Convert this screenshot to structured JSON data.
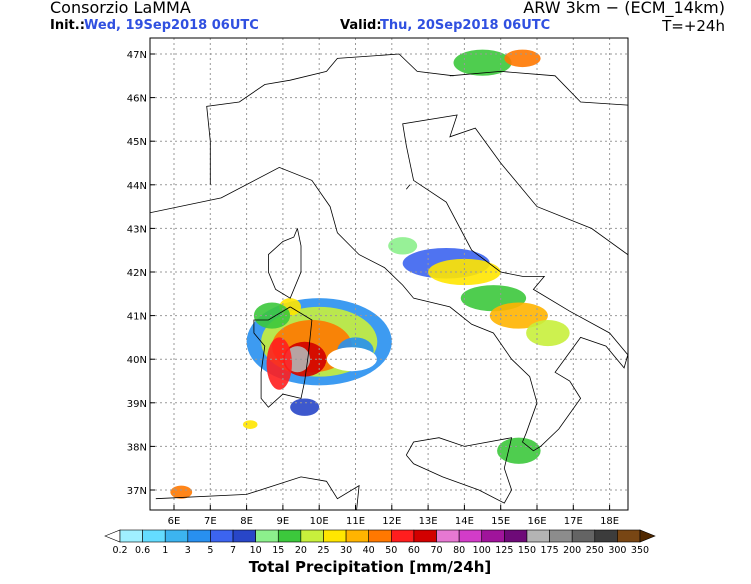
{
  "header": {
    "left_title": "Consorzio LaMMA",
    "init_label": "Init.:",
    "init_value": "Wed, 19Sep2018 06UTC",
    "valid_label": "Valid:",
    "valid_value": "Thu, 20Sep2018 06UTC",
    "model": "ARW 3km − (ECM_14km)",
    "lead": "T=+24h"
  },
  "map": {
    "lat_labels": [
      "47N",
      "46N",
      "45N",
      "44N",
      "43N",
      "42N",
      "41N",
      "40N",
      "39N",
      "38N",
      "37N"
    ],
    "lon_labels": [
      "6E",
      "7E",
      "8E",
      "9E",
      "10E",
      "11E",
      "12E",
      "13E",
      "14E",
      "15E",
      "16E",
      "17E",
      "18E"
    ]
  },
  "colorbar": {
    "levels": [
      0.2,
      0.6,
      1,
      3,
      5,
      7,
      10,
      15,
      20,
      25,
      30,
      40,
      50,
      60,
      70,
      80,
      100,
      125,
      150,
      175,
      200,
      250,
      300,
      350
    ],
    "colors": [
      "#ffffff",
      "#a0f0ff",
      "#64dcff",
      "#3cb4f0",
      "#2890f0",
      "#3c64f0",
      "#2846c8",
      "#8cf08c",
      "#3cc83c",
      "#c8f03c",
      "#ffe600",
      "#ffb400",
      "#ff7800",
      "#ff1e1e",
      "#d20000",
      "#e678d2",
      "#d23cc8",
      "#a0149b",
      "#6e0a78",
      "#b4b4b4",
      "#8c8c8c",
      "#646464",
      "#3c3c3c",
      "#784614",
      "#502800"
    ],
    "title": "Total Precipitation [mm/24h]"
  }
}
